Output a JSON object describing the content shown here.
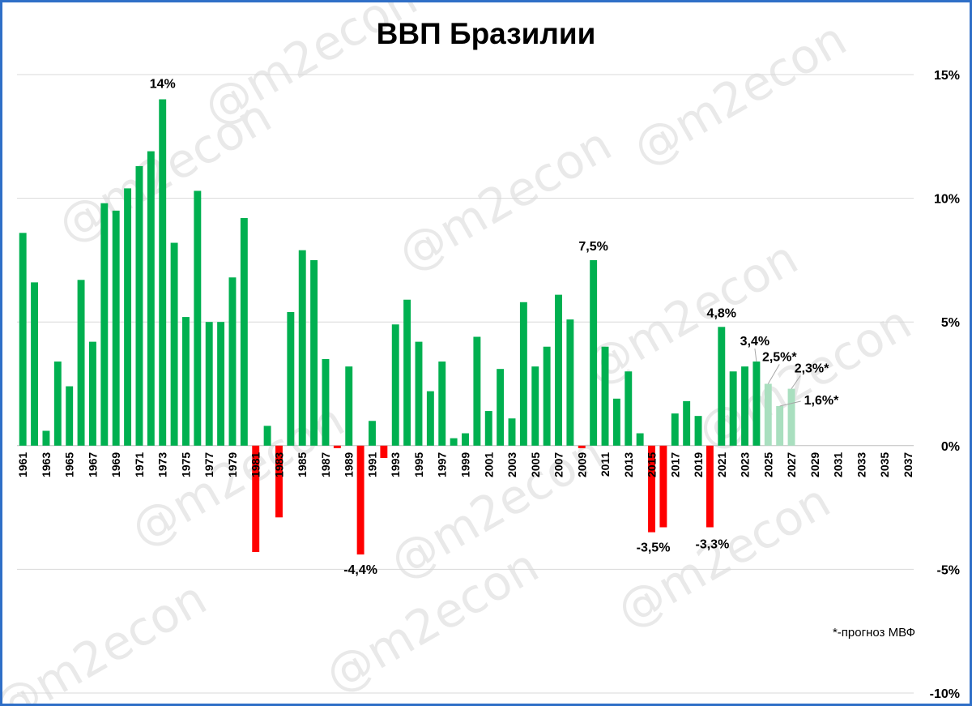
{
  "chart_data": {
    "type": "bar",
    "title": "ВВП Бразилии",
    "watermark": "@m2econ",
    "footnote": "*-прогноз МВФ",
    "ylim": [
      -10,
      15
    ],
    "yticks": [
      15,
      10,
      5,
      0,
      -5,
      -10
    ],
    "ytick_labels": [
      "15%",
      "10%",
      "5%",
      "0%",
      "-5%",
      "-10%"
    ],
    "grid": true,
    "x": [
      1961,
      1962,
      1963,
      1964,
      1965,
      1966,
      1967,
      1968,
      1969,
      1970,
      1971,
      1972,
      1973,
      1974,
      1975,
      1976,
      1977,
      1978,
      1979,
      1980,
      1981,
      1982,
      1983,
      1984,
      1985,
      1986,
      1987,
      1988,
      1989,
      1990,
      1991,
      1992,
      1993,
      1994,
      1995,
      1996,
      1997,
      1998,
      1999,
      2000,
      2001,
      2002,
      2003,
      2004,
      2005,
      2006,
      2007,
      2008,
      2009,
      2010,
      2011,
      2012,
      2013,
      2014,
      2015,
      2016,
      2017,
      2018,
      2019,
      2020,
      2021,
      2022,
      2023,
      2024,
      2025,
      2026,
      2027,
      2028,
      2029,
      2030,
      2031,
      2032,
      2033,
      2034,
      2035,
      2036,
      2037
    ],
    "xtick_labels": [
      "1961",
      "1963",
      "1965",
      "1967",
      "1969",
      "1971",
      "1973",
      "1975",
      "1977",
      "1979",
      "1981",
      "1983",
      "1985",
      "1987",
      "1989",
      "1991",
      "1993",
      "1995",
      "1997",
      "1999",
      "2001",
      "2003",
      "2005",
      "2007",
      "2009",
      "2011",
      "2013",
      "2015",
      "2017",
      "2019",
      "2021",
      "2023",
      "2025",
      "2027",
      "2029",
      "2031",
      "2033",
      "2035",
      "2037"
    ],
    "values": [
      8.6,
      6.6,
      0.6,
      3.4,
      2.4,
      6.7,
      4.2,
      9.8,
      9.5,
      10.4,
      11.3,
      11.9,
      14.0,
      8.2,
      5.2,
      10.3,
      5.0,
      5.0,
      6.8,
      9.2,
      -4.3,
      0.8,
      -2.9,
      5.4,
      7.9,
      7.5,
      3.5,
      -0.1,
      3.2,
      -4.4,
      1.0,
      -0.5,
      4.9,
      5.9,
      4.2,
      2.2,
      3.4,
      0.3,
      0.5,
      4.4,
      1.4,
      3.1,
      1.1,
      5.8,
      3.2,
      4.0,
      6.1,
      5.1,
      -0.1,
      7.5,
      4.0,
      1.9,
      3.0,
      0.5,
      -3.5,
      -3.3,
      1.3,
      1.8,
      1.2,
      -3.3,
      4.8,
      3.0,
      3.2,
      3.4,
      2.5,
      1.6,
      2.3,
      null,
      null,
      null,
      null,
      null,
      null,
      null,
      null,
      null,
      null
    ],
    "forecast_from": 2025,
    "colors": {
      "positive": "#00b050",
      "negative": "#ff0000",
      "forecast": "#a9dfbf"
    },
    "data_labels": [
      {
        "year": 1973,
        "text": "14%"
      },
      {
        "year": 1990,
        "text": "-4,4%"
      },
      {
        "year": 2010,
        "text": "7,5%"
      },
      {
        "year": 2015,
        "text": "-3,5%"
      },
      {
        "year": 2020,
        "text": "-3,3%"
      },
      {
        "year": 2021,
        "text": "4,8%"
      },
      {
        "year": 2024,
        "text": "3,4%"
      },
      {
        "year": 2025,
        "text": "2,5%*"
      },
      {
        "year": 2026,
        "text": "1,6%*"
      },
      {
        "year": 2027,
        "text": "2,3%*"
      }
    ]
  }
}
